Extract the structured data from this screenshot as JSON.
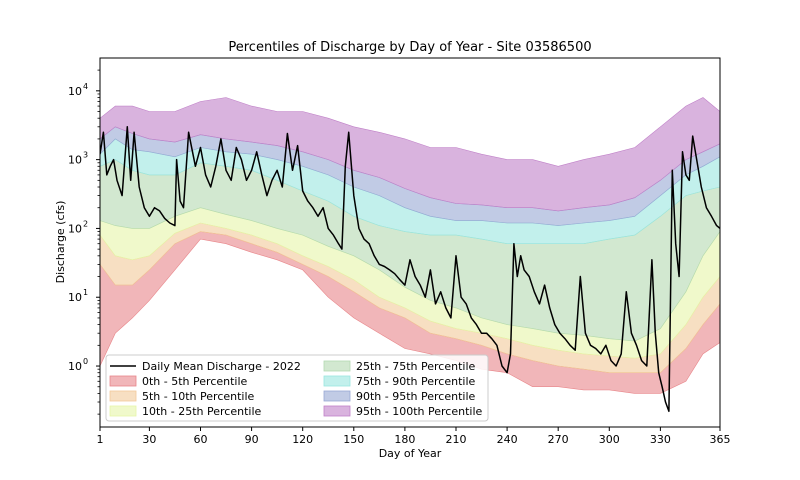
{
  "chart_data": {
    "type": "area",
    "title": "Percentiles of Discharge by Day of Year - Site 03586500",
    "xlabel": "Day of Year",
    "ylabel": "Discharge (cfs)",
    "xlim": [
      1,
      365
    ],
    "ylim": [
      0.13,
      30000
    ],
    "yscale": "log",
    "grid": false,
    "legend_position": "lower-left",
    "x_ticks": [
      "1",
      "30",
      "60",
      "90",
      "120",
      "150",
      "180",
      "210",
      "240",
      "270",
      "300",
      "330",
      "365"
    ],
    "x_tick_values": [
      1,
      30,
      60,
      90,
      120,
      150,
      180,
      210,
      240,
      270,
      300,
      330,
      365
    ],
    "y_ticks": [
      {
        "value": 1,
        "base": "10",
        "exp": "0"
      },
      {
        "value": 10,
        "base": "10",
        "exp": "1"
      },
      {
        "value": 100,
        "base": "10",
        "exp": "2"
      },
      {
        "value": 1000,
        "base": "10",
        "exp": "3"
      },
      {
        "value": 10000,
        "base": "10",
        "exp": "4"
      }
    ],
    "x": [
      1,
      10,
      20,
      30,
      45,
      60,
      75,
      90,
      105,
      120,
      135,
      150,
      165,
      180,
      195,
      210,
      225,
      240,
      255,
      270,
      285,
      300,
      315,
      330,
      345,
      355,
      365
    ],
    "percentile_levels": [
      {
        "name": "p0",
        "values": [
          1.0,
          3,
          5,
          9,
          25,
          70,
          60,
          45,
          35,
          25,
          10,
          5,
          3,
          1.8,
          1.5,
          1.2,
          0.9,
          0.8,
          0.5,
          0.5,
          0.45,
          0.45,
          0.4,
          0.4,
          0.6,
          1.5,
          2.2
        ]
      },
      {
        "name": "p5",
        "values": [
          30,
          15,
          15,
          25,
          60,
          90,
          80,
          60,
          45,
          30,
          20,
          12,
          7,
          5,
          3,
          2.5,
          2.0,
          1.5,
          1.2,
          1.0,
          0.9,
          0.8,
          0.8,
          0.8,
          1.8,
          4,
          8
        ]
      },
      {
        "name": "p10",
        "values": [
          80,
          40,
          35,
          40,
          85,
          120,
          100,
          80,
          60,
          40,
          28,
          18,
          10,
          7,
          4.5,
          3.5,
          3.0,
          2.5,
          2.0,
          1.7,
          1.5,
          1.4,
          1.3,
          1.5,
          4,
          10,
          20
        ]
      },
      {
        "name": "p25",
        "values": [
          130,
          110,
          100,
          100,
          150,
          200,
          160,
          130,
          100,
          80,
          55,
          40,
          25,
          14,
          9,
          7,
          5,
          4,
          3.5,
          3,
          2.8,
          2.5,
          2.3,
          3.5,
          12,
          40,
          90
        ]
      },
      {
        "name": "p75",
        "values": [
          800,
          1000,
          700,
          600,
          600,
          900,
          800,
          700,
          500,
          350,
          250,
          150,
          110,
          90,
          80,
          80,
          70,
          60,
          60,
          60,
          60,
          70,
          80,
          150,
          300,
          350,
          400
        ]
      },
      {
        "name": "p90",
        "values": [
          1200,
          2000,
          1400,
          1300,
          1100,
          1500,
          1300,
          1200,
          1000,
          800,
          600,
          400,
          300,
          200,
          150,
          130,
          130,
          120,
          120,
          110,
          120,
          130,
          150,
          300,
          600,
          800,
          1100
        ]
      },
      {
        "name": "p95",
        "values": [
          2000,
          3000,
          2400,
          2000,
          1800,
          2300,
          2000,
          1800,
          1600,
          1300,
          1000,
          700,
          550,
          380,
          280,
          230,
          220,
          200,
          200,
          180,
          200,
          220,
          280,
          500,
          1000,
          1300,
          1700
        ]
      },
      {
        "name": "p100",
        "values": [
          4000,
          6000,
          6000,
          5000,
          5000,
          7000,
          8000,
          6000,
          5000,
          5000,
          4000,
          3000,
          2500,
          2000,
          1500,
          1500,
          1200,
          1000,
          1000,
          800,
          1000,
          1200,
          1500,
          3000,
          6000,
          8000,
          5000
        ]
      }
    ],
    "series": [
      {
        "name": "Daily Mean Discharge - 2022",
        "x": [
          1,
          3,
          5,
          7,
          9,
          11,
          14,
          17,
          19,
          21,
          24,
          27,
          30,
          33,
          36,
          39,
          42,
          45,
          46,
          48,
          50,
          53,
          57,
          60,
          63,
          66,
          69,
          72,
          75,
          78,
          81,
          84,
          87,
          90,
          93,
          96,
          99,
          102,
          105,
          108,
          111,
          114,
          117,
          120,
          123,
          126,
          129,
          132,
          135,
          138,
          141,
          143,
          145,
          147,
          150,
          153,
          156,
          159,
          162,
          165,
          168,
          171,
          174,
          177,
          180,
          183,
          186,
          189,
          192,
          195,
          198,
          201,
          204,
          207,
          210,
          213,
          216,
          219,
          222,
          225,
          228,
          231,
          234,
          237,
          240,
          242,
          244,
          246,
          248,
          250,
          253,
          256,
          259,
          262,
          265,
          268,
          271,
          274,
          277,
          280,
          283,
          286,
          289,
          292,
          295,
          298,
          301,
          304,
          307,
          310,
          313,
          316,
          319,
          322,
          325,
          327,
          329,
          331,
          333,
          335,
          337,
          339,
          341,
          343,
          345,
          347,
          349,
          351,
          354,
          357,
          360,
          363,
          365
        ],
        "values": [
          1200,
          2500,
          600,
          800,
          1000,
          500,
          300,
          3000,
          500,
          2500,
          400,
          200,
          150,
          200,
          180,
          140,
          120,
          110,
          1000,
          250,
          200,
          2500,
          800,
          1500,
          600,
          400,
          800,
          2000,
          700,
          500,
          1500,
          1000,
          500,
          700,
          1300,
          600,
          300,
          500,
          700,
          400,
          2400,
          700,
          1600,
          350,
          250,
          200,
          150,
          200,
          100,
          80,
          60,
          50,
          800,
          2500,
          300,
          100,
          70,
          60,
          40,
          30,
          28,
          25,
          22,
          18,
          15,
          35,
          20,
          15,
          10,
          25,
          8,
          12,
          7,
          5,
          40,
          10,
          8,
          5,
          4,
          3,
          3,
          2.5,
          2,
          1,
          0.8,
          1.5,
          60,
          20,
          40,
          25,
          20,
          12,
          8,
          15,
          7,
          4,
          3,
          2.5,
          2,
          1.7,
          20,
          3,
          2,
          1.8,
          1.5,
          2,
          1.2,
          1,
          1.5,
          12,
          3,
          2,
          1.2,
          1,
          35,
          3,
          0.8,
          0.5,
          0.3,
          0.22,
          700,
          60,
          20,
          1300,
          600,
          500,
          2200,
          1100,
          400,
          200,
          150,
          110,
          100
        ]
      }
    ],
    "legend": [
      {
        "label": "Daily Mean Discharge - 2022",
        "kind": "line",
        "color": "#000000"
      },
      {
        "label": "0th - 5th Percentile",
        "kind": "band",
        "color": "#e8868a",
        "band": [
          0,
          1
        ]
      },
      {
        "label": "5th - 10th Percentile",
        "kind": "band",
        "color": "#f2c99a",
        "band": [
          1,
          2
        ]
      },
      {
        "label": "10th - 25th Percentile",
        "kind": "band",
        "color": "#e6f5a8",
        "band": [
          2,
          3
        ]
      },
      {
        "label": "25th - 75th Percentile",
        "kind": "band",
        "color": "#b4d9b1",
        "band": [
          3,
          4
        ]
      },
      {
        "label": "75th - 90th Percentile",
        "kind": "band",
        "color": "#9ae6e0",
        "band": [
          4,
          5
        ]
      },
      {
        "label": "90th - 95th Percentile",
        "kind": "band",
        "color": "#98a8d4",
        "band": [
          5,
          6
        ]
      },
      {
        "label": "95th - 100th Percentile",
        "kind": "band",
        "color": "#c081c8",
        "band": [
          6,
          7
        ]
      }
    ]
  }
}
